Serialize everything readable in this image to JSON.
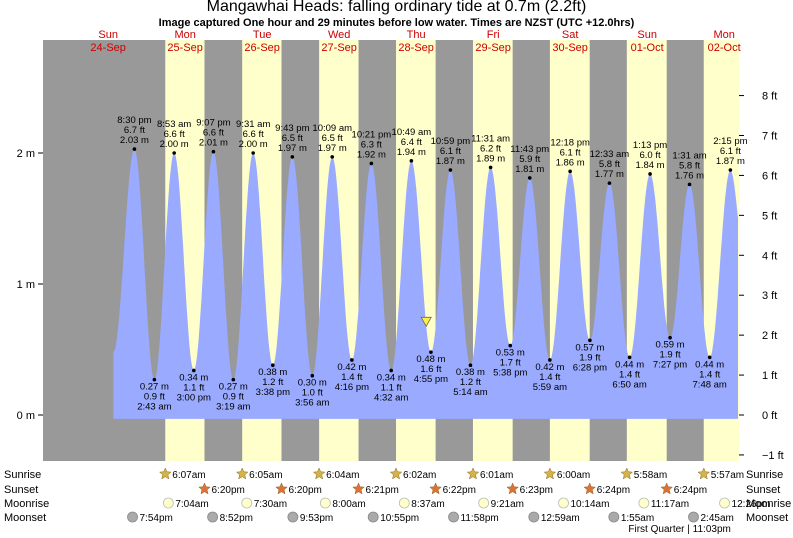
{
  "header": {
    "title": "Mangawhai Heads: falling  ordinary tide at 0.7m (2.2ft)",
    "subtitle": "Image captured One hour and 29 minutes before low water. Times are NZST (UTC +12.0hrs)"
  },
  "colors": {
    "night": "#999999",
    "day": "#ffffcc",
    "water": "#99aaff",
    "day_label": "#cc0000",
    "sunrise_star": "#d4b44a",
    "sunset_star": "#e0703a",
    "moonrise": "#ffffcc",
    "moonset": "#aaaaaa",
    "marker": "#ffee44"
  },
  "chart_data": {
    "type": "area",
    "ylabel_left_unit": "m",
    "ylabel_right_unit": "ft",
    "ylim_m": [
      -0.1,
      2.55
    ],
    "y_ticks_m": [
      {
        "value": 0,
        "label": "0 m"
      },
      {
        "value": 1,
        "label": "1 m"
      },
      {
        "value": 2,
        "label": "2 m"
      }
    ],
    "y_ticks_ft": [
      {
        "value": -1,
        "label": "−1 ft"
      },
      {
        "value": 0,
        "label": "0 ft"
      },
      {
        "value": 1,
        "label": "1 ft"
      },
      {
        "value": 2,
        "label": "2 ft"
      },
      {
        "value": 3,
        "label": "3 ft"
      },
      {
        "value": 4,
        "label": "4 ft"
      },
      {
        "value": 5,
        "label": "5 ft"
      },
      {
        "value": 6,
        "label": "6 ft"
      },
      {
        "value": 7,
        "label": "7 ft"
      },
      {
        "value": 8,
        "label": "8 ft"
      }
    ],
    "days": [
      {
        "dow": "Sun",
        "date": "24-Sep"
      },
      {
        "dow": "Mon",
        "date": "25-Sep"
      },
      {
        "dow": "Tue",
        "date": "26-Sep"
      },
      {
        "dow": "Wed",
        "date": "27-Sep"
      },
      {
        "dow": "Thu",
        "date": "28-Sep"
      },
      {
        "dow": "Fri",
        "date": "29-Sep"
      },
      {
        "dow": "Sat",
        "date": "30-Sep"
      },
      {
        "dow": "Sun",
        "date": "01-Oct"
      },
      {
        "dow": "Mon",
        "date": "02-Oct"
      }
    ],
    "tides": [
      {
        "type": "high",
        "day": 0,
        "time": "8:30 pm",
        "ft": "6.7 ft",
        "m": 2.03
      },
      {
        "type": "low",
        "day": 1,
        "time": "2:43 am",
        "ft": "0.9 ft",
        "m": 0.27
      },
      {
        "type": "high",
        "day": 1,
        "time": "8:53 am",
        "ft": "6.6 ft",
        "m": 2.0
      },
      {
        "type": "low",
        "day": 1,
        "time": "3:00 pm",
        "ft": "1.1 ft",
        "m": 0.34
      },
      {
        "type": "high",
        "day": 1,
        "time": "9:07 pm",
        "ft": "6.6 ft",
        "m": 2.01
      },
      {
        "type": "low",
        "day": 2,
        "time": "3:19 am",
        "ft": "0.9 ft",
        "m": 0.27
      },
      {
        "type": "high",
        "day": 2,
        "time": "9:31 am",
        "ft": "6.6 ft",
        "m": 2.0
      },
      {
        "type": "low",
        "day": 2,
        "time": "3:38 pm",
        "ft": "1.2 ft",
        "m": 0.38
      },
      {
        "type": "high",
        "day": 2,
        "time": "9:43 pm",
        "ft": "6.5 ft",
        "m": 1.97
      },
      {
        "type": "low",
        "day": 3,
        "time": "3:56 am",
        "ft": "1.0 ft",
        "m": 0.3
      },
      {
        "type": "high",
        "day": 3,
        "time": "10:09 am",
        "ft": "6.5 ft",
        "m": 1.97
      },
      {
        "type": "low",
        "day": 3,
        "time": "4:16 pm",
        "ft": "1.4 ft",
        "m": 0.42
      },
      {
        "type": "high",
        "day": 3,
        "time": "10:21 pm",
        "ft": "6.3 ft",
        "m": 1.92
      },
      {
        "type": "low",
        "day": 4,
        "time": "4:32 am",
        "ft": "1.1 ft",
        "m": 0.34
      },
      {
        "type": "high",
        "day": 4,
        "time": "10:49 am",
        "ft": "6.4 ft",
        "m": 1.94
      },
      {
        "type": "low",
        "day": 4,
        "time": "4:55 pm",
        "ft": "1.6 ft",
        "m": 0.48
      },
      {
        "type": "high",
        "day": 4,
        "time": "10:59 pm",
        "ft": "6.1 ft",
        "m": 1.87
      },
      {
        "type": "low",
        "day": 5,
        "time": "5:14 am",
        "ft": "1.2 ft",
        "m": 0.38
      },
      {
        "type": "high",
        "day": 5,
        "time": "11:31 am",
        "ft": "6.2 ft",
        "m": 1.89
      },
      {
        "type": "low",
        "day": 5,
        "time": "5:38 pm",
        "ft": "1.7 ft",
        "m": 0.53
      },
      {
        "type": "high",
        "day": 5,
        "time": "11:43 pm",
        "ft": "5.9 ft",
        "m": 1.81
      },
      {
        "type": "low",
        "day": 6,
        "time": "5:59 am",
        "ft": "1.4 ft",
        "m": 0.42
      },
      {
        "type": "high",
        "day": 6,
        "time": "12:18 pm",
        "ft": "6.1 ft",
        "m": 1.86
      },
      {
        "type": "low",
        "day": 6,
        "time": "6:28 pm",
        "ft": "1.9 ft",
        "m": 0.57
      },
      {
        "type": "high",
        "day": 7,
        "time": "12:33 am",
        "ft": "5.8 ft",
        "m": 1.77
      },
      {
        "type": "low",
        "day": 7,
        "time": "6:50 am",
        "ft": "1.4 ft",
        "m": 0.44
      },
      {
        "type": "high",
        "day": 7,
        "time": "1:13 pm",
        "ft": "6.0 ft",
        "m": 1.84
      },
      {
        "type": "low",
        "day": 7,
        "time": "7:27 pm",
        "ft": "1.9 ft",
        "m": 0.59
      },
      {
        "type": "high",
        "day": 8,
        "time": "1:31 am",
        "ft": "5.8 ft",
        "m": 1.76
      },
      {
        "type": "low",
        "day": 8,
        "time": "7:48 am",
        "ft": "1.4 ft",
        "m": 0.44
      },
      {
        "type": "high",
        "day": 8,
        "time": "2:15 pm",
        "ft": "6.1 ft",
        "m": 1.87
      }
    ],
    "current": {
      "day": 4,
      "time": "3:26 pm",
      "m": 0.7
    }
  },
  "almanac": {
    "labels": {
      "sunrise": "Sunrise",
      "sunset": "Sunset",
      "moonrise": "Moonrise",
      "moonset": "Moonset"
    },
    "sunrise": [
      {
        "day": 1,
        "time": "6:07am"
      },
      {
        "day": 2,
        "time": "6:05am"
      },
      {
        "day": 3,
        "time": "6:04am"
      },
      {
        "day": 4,
        "time": "6:02am"
      },
      {
        "day": 5,
        "time": "6:01am"
      },
      {
        "day": 6,
        "time": "6:00am"
      },
      {
        "day": 7,
        "time": "5:58am"
      },
      {
        "day": 8,
        "time": "5:57am"
      }
    ],
    "sunset": [
      {
        "day": 1,
        "time": "6:20pm"
      },
      {
        "day": 2,
        "time": "6:20pm"
      },
      {
        "day": 3,
        "time": "6:21pm"
      },
      {
        "day": 4,
        "time": "6:22pm"
      },
      {
        "day": 5,
        "time": "6:23pm"
      },
      {
        "day": 6,
        "time": "6:24pm"
      },
      {
        "day": 7,
        "time": "6:24pm"
      }
    ],
    "moonrise": [
      {
        "day": 1,
        "time": "7:04am"
      },
      {
        "day": 2,
        "time": "7:30am"
      },
      {
        "day": 3,
        "time": "8:00am"
      },
      {
        "day": 4,
        "time": "8:37am"
      },
      {
        "day": 5,
        "time": "9:21am"
      },
      {
        "day": 6,
        "time": "10:14am"
      },
      {
        "day": 7,
        "time": "11:17am"
      },
      {
        "day": 8,
        "time": "12:26pm"
      }
    ],
    "moonset": [
      {
        "day": 0,
        "time": "7:54pm"
      },
      {
        "day": 1,
        "time": "8:52pm"
      },
      {
        "day": 2,
        "time": "9:53pm"
      },
      {
        "day": 3,
        "time": "10:55pm"
      },
      {
        "day": 4,
        "time": "11:58pm"
      },
      {
        "day": 6,
        "time": "12:59am"
      },
      {
        "day": 7,
        "time": "1:55am"
      },
      {
        "day": 8,
        "time": "2:45am"
      }
    ],
    "moon_phase": {
      "day": 7,
      "time": "11:03pm",
      "label": "First Quarter | 11:03pm"
    }
  }
}
